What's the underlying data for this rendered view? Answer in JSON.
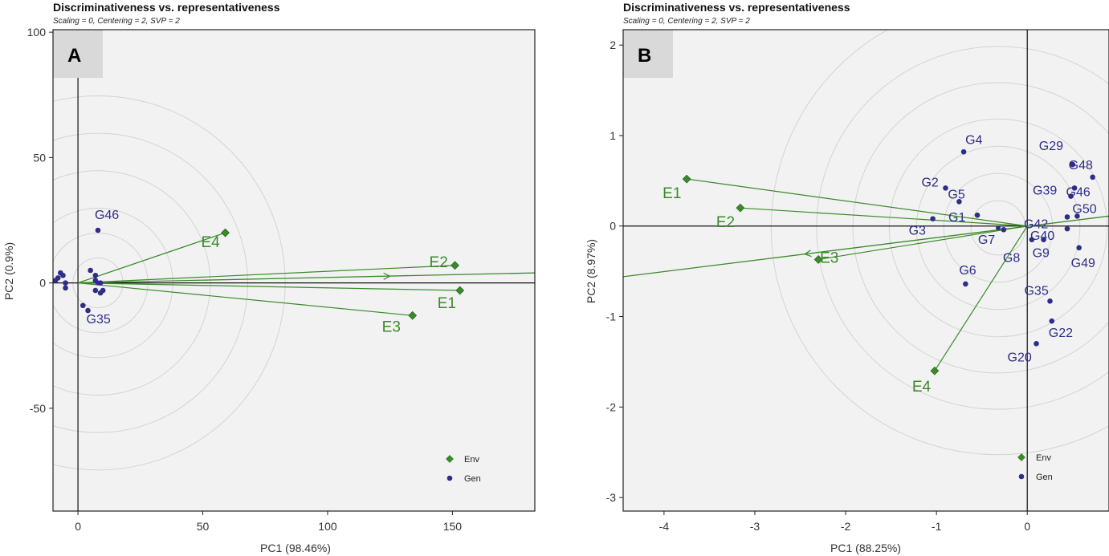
{
  "colors": {
    "env": "#3a8a2a",
    "gen": "#2d2d8a",
    "panel_bg": "#f2f2f2",
    "circle": "#d4d4d4",
    "badge": "#d9d9d9"
  },
  "chart_data": [
    {
      "type": "scatter",
      "panel_label": "A",
      "title": "Discriminativeness vs. representativeness",
      "subtitle": "Scaling = 0, Centering = 2, SVP = 2",
      "xlabel": "PC1 (98.46%)",
      "ylabel": "PC2 (0.9%)",
      "xlim": [
        -10,
        183
      ],
      "ylim": [
        -91,
        101
      ],
      "xticks": [
        0,
        50,
        100,
        150
      ],
      "yticks": [
        -50,
        0,
        50,
        100
      ],
      "rings": [
        10,
        20,
        30,
        45,
        60,
        75
      ],
      "legend": {
        "position": "bottom-right",
        "entries": [
          "Env",
          "Gen"
        ]
      },
      "environments": [
        {
          "name": "E1",
          "x": 153,
          "y": -3
        },
        {
          "name": "E2",
          "x": 151,
          "y": 7
        },
        {
          "name": "E3",
          "x": 134,
          "y": -13
        },
        {
          "name": "E4",
          "x": 59,
          "y": 20
        }
      ],
      "aec_line": {
        "from": [
          0,
          0
        ],
        "to": [
          183,
          4
        ],
        "arrow_at": [
          125,
          2.7
        ]
      },
      "origin_marker": [
        8,
        0
      ],
      "genotypes": [
        {
          "name": "G46",
          "x": 8,
          "y": 21,
          "labeled": true
        },
        {
          "name": "G35",
          "x": 4,
          "y": -11,
          "labeled": true
        },
        {
          "name": "",
          "x": -8,
          "y": 2,
          "labeled": false
        },
        {
          "name": "",
          "x": -7,
          "y": 4,
          "labeled": false
        },
        {
          "name": "",
          "x": -9,
          "y": 1,
          "labeled": false
        },
        {
          "name": "",
          "x": -5,
          "y": 0,
          "labeled": false
        },
        {
          "name": "",
          "x": -5,
          "y": -2,
          "labeled": false
        },
        {
          "name": "",
          "x": -6,
          "y": 3,
          "labeled": false
        },
        {
          "name": "",
          "x": 5,
          "y": 5,
          "labeled": false
        },
        {
          "name": "",
          "x": 7,
          "y": 3,
          "labeled": false
        },
        {
          "name": "",
          "x": 7,
          "y": 1,
          "labeled": false
        },
        {
          "name": "",
          "x": 9,
          "y": 0,
          "labeled": false
        },
        {
          "name": "",
          "x": 7,
          "y": -3,
          "labeled": false
        },
        {
          "name": "",
          "x": 9,
          "y": -4,
          "labeled": false
        },
        {
          "name": "",
          "x": 10,
          "y": -3,
          "labeled": false
        },
        {
          "name": "",
          "x": 2,
          "y": -9,
          "labeled": false
        }
      ]
    },
    {
      "type": "scatter",
      "panel_label": "B",
      "title": "Discriminativeness vs. representativeness",
      "subtitle": "Scaling = 0, Centering = 2, SVP = 2",
      "xlabel": "PC1 (88.25%)",
      "ylabel": "PC2 (8.97%)",
      "xlim": [
        -4.45,
        0.9
      ],
      "ylim": [
        -3.15,
        2.17
      ],
      "xticks": [
        -4,
        -3,
        -2,
        -1,
        0
      ],
      "yticks": [
        -3,
        -2,
        -1,
        0,
        1,
        2
      ],
      "rings": [
        0.3,
        0.6,
        0.9,
        1.2,
        1.6,
        2.0,
        2.5
      ],
      "legend": {
        "position": "bottom-right",
        "entries": [
          "Env",
          "Gen"
        ]
      },
      "environments": [
        {
          "name": "E1",
          "x": -3.75,
          "y": 0.52
        },
        {
          "name": "E2",
          "x": -3.16,
          "y": 0.2
        },
        {
          "name": "E3",
          "x": -2.3,
          "y": -0.37
        },
        {
          "name": "E4",
          "x": -1.02,
          "y": -1.6
        }
      ],
      "aec_line": {
        "from": [
          0.9,
          0.11
        ],
        "to": [
          -4.45,
          -0.56
        ],
        "arrow_at": [
          -2.45,
          -0.31
        ]
      },
      "origin_marker": [
        -0.32,
        -0.02
      ],
      "genotypes": [
        {
          "name": "G4",
          "x": -0.7,
          "y": 0.82,
          "labeled": true
        },
        {
          "name": "G2",
          "x": -0.9,
          "y": 0.42,
          "labeled": true
        },
        {
          "name": "G5",
          "x": -0.75,
          "y": 0.27,
          "labeled": true
        },
        {
          "name": "G1",
          "x": -0.55,
          "y": 0.12,
          "labeled": true
        },
        {
          "name": "G3",
          "x": -1.04,
          "y": 0.08,
          "labeled": true
        },
        {
          "name": "G7",
          "x": -0.26,
          "y": -0.04,
          "labeled": true
        },
        {
          "name": "G8",
          "x": 0.05,
          "y": -0.15,
          "labeled": true
        },
        {
          "name": "G6",
          "x": -0.68,
          "y": -0.64,
          "labeled": true
        },
        {
          "name": "G29",
          "x": 0.5,
          "y": 0.68,
          "labeled": true
        },
        {
          "name": "G48",
          "x": 0.72,
          "y": 0.54,
          "labeled": true
        },
        {
          "name": "G39",
          "x": 0.52,
          "y": 0.42,
          "labeled": true
        },
        {
          "name": "G46",
          "x": 0.48,
          "y": 0.33,
          "labeled": true
        },
        {
          "name": "G42",
          "x": 0.44,
          "y": 0.1,
          "labeled": true
        },
        {
          "name": "G50",
          "x": 0.55,
          "y": 0.11,
          "labeled": true
        },
        {
          "name": "G40",
          "x": 0.44,
          "y": -0.03,
          "labeled": true
        },
        {
          "name": "G9",
          "x": 0.18,
          "y": -0.15,
          "labeled": true
        },
        {
          "name": "G49",
          "x": 0.57,
          "y": -0.24,
          "labeled": true
        },
        {
          "name": "G35",
          "x": 0.25,
          "y": -0.83,
          "labeled": true
        },
        {
          "name": "G22",
          "x": 0.27,
          "y": -1.05,
          "labeled": true
        },
        {
          "name": "G20",
          "x": 0.1,
          "y": -1.3,
          "labeled": true
        }
      ]
    }
  ]
}
